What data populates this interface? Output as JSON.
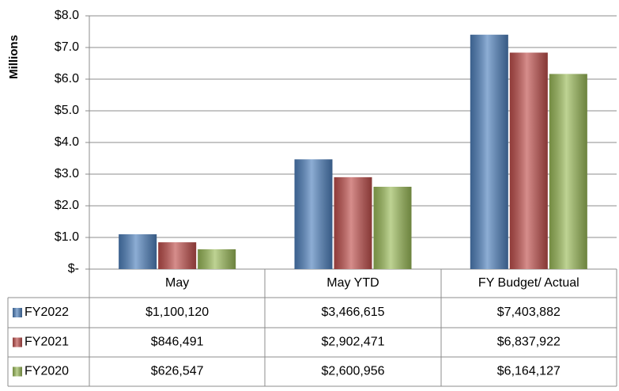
{
  "chart_data": {
    "type": "bar",
    "y_label": "Millions",
    "categories": [
      "May",
      "May YTD",
      "FY Budget/ Actual"
    ],
    "series": [
      {
        "name": "FY2022",
        "color": "#4f81bd",
        "values": [
          1.10012,
          3.466615,
          7.403882
        ],
        "value_labels": [
          "$1,100,120",
          "$3,466,615",
          "$7,403,882"
        ]
      },
      {
        "name": "FY2021",
        "color": "#c0504d",
        "values": [
          0.846491,
          2.902471,
          6.837922
        ],
        "value_labels": [
          "$846,491",
          "$2,902,471",
          "$6,837,922"
        ]
      },
      {
        "name": "FY2020",
        "color": "#9bbb59",
        "values": [
          0.626547,
          2.600956,
          6.164127
        ],
        "value_labels": [
          "$626,547",
          "$2,600,956",
          "$6,164,127"
        ]
      }
    ],
    "ylim": [
      0,
      8
    ],
    "yticks": [
      {
        "value": 0,
        "label": "$-"
      },
      {
        "value": 1,
        "label": "$1.0"
      },
      {
        "value": 2,
        "label": "$2.0"
      },
      {
        "value": 3,
        "label": "$3.0"
      },
      {
        "value": 4,
        "label": "$4.0"
      },
      {
        "value": 5,
        "label": "$5.0"
      },
      {
        "value": 6,
        "label": "$6.0"
      },
      {
        "value": 7,
        "label": "$7.0"
      },
      {
        "value": 8,
        "label": "$8.0"
      }
    ],
    "grid": true
  }
}
